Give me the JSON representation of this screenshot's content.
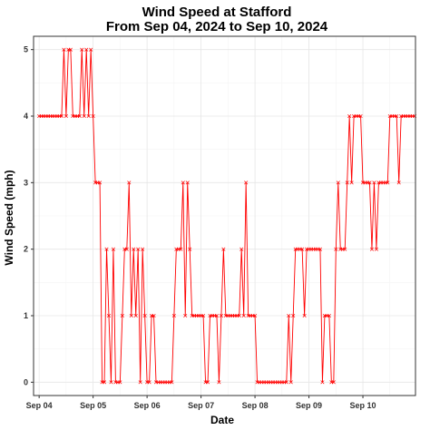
{
  "chart_data": {
    "type": "line",
    "title": "Wind Speed at Stafford",
    "subtitle": "From Sep 04, 2024 to Sep 10, 2024",
    "xlabel": "Date",
    "ylabel": "Wind Speed (mph)",
    "x_ticks": [
      "Sep 04",
      "Sep 05",
      "Sep 06",
      "Sep 07",
      "Sep 08",
      "Sep 09",
      "Sep 10"
    ],
    "xlim": [
      "2024-09-03T21:31",
      "2024-09-10T23:23"
    ],
    "ylim": [
      -0.2,
      5.2
    ],
    "y_ticks": [
      0,
      1,
      2,
      3,
      4,
      5
    ],
    "grid": true,
    "marker": "x",
    "line_color": "#ff0000",
    "series": [
      {
        "x": [
          "2024-09-04T00:00",
          "2024-09-04T01:00",
          "2024-09-04T02:00",
          "2024-09-04T03:00",
          "2024-09-04T04:00",
          "2024-09-04T05:00",
          "2024-09-04T06:00",
          "2024-09-04T07:00",
          "2024-09-04T08:00",
          "2024-09-04T09:00",
          "2024-09-04T10:00",
          "2024-09-04T11:00",
          "2024-09-04T12:00",
          "2024-09-04T13:00",
          "2024-09-04T14:00",
          "2024-09-04T15:00",
          "2024-09-04T16:00",
          "2024-09-04T17:00",
          "2024-09-04T18:00",
          "2024-09-04T19:00",
          "2024-09-04T20:00",
          "2024-09-04T21:00",
          "2024-09-04T22:00",
          "2024-09-04T23:00",
          "2024-09-05T00:00",
          "2024-09-05T01:00",
          "2024-09-05T02:00",
          "2024-09-05T03:00",
          "2024-09-05T04:00",
          "2024-09-05T05:00",
          "2024-09-05T06:00",
          "2024-09-05T07:00",
          "2024-09-05T08:00",
          "2024-09-05T09:00",
          "2024-09-05T10:00",
          "2024-09-05T11:00",
          "2024-09-05T12:00",
          "2024-09-05T13:00",
          "2024-09-05T14:00",
          "2024-09-05T15:00",
          "2024-09-05T16:00",
          "2024-09-05T17:00",
          "2024-09-05T18:00",
          "2024-09-05T19:00",
          "2024-09-05T20:00",
          "2024-09-05T21:00",
          "2024-09-05T22:00",
          "2024-09-05T23:00",
          "2024-09-06T00:00",
          "2024-09-06T01:00",
          "2024-09-06T02:00",
          "2024-09-06T03:00",
          "2024-09-06T04:00",
          "2024-09-06T05:00",
          "2024-09-06T06:00",
          "2024-09-06T07:00",
          "2024-09-06T08:00",
          "2024-09-06T09:00",
          "2024-09-06T10:00",
          "2024-09-06T11:00",
          "2024-09-06T12:00",
          "2024-09-06T13:00",
          "2024-09-06T14:00",
          "2024-09-06T15:00",
          "2024-09-06T16:00",
          "2024-09-06T17:00",
          "2024-09-06T18:00",
          "2024-09-06T19:00",
          "2024-09-06T20:00",
          "2024-09-06T21:00",
          "2024-09-06T22:00",
          "2024-09-06T23:00",
          "2024-09-07T00:00",
          "2024-09-07T01:00",
          "2024-09-07T02:00",
          "2024-09-07T03:00",
          "2024-09-07T04:00",
          "2024-09-07T05:00",
          "2024-09-07T06:00",
          "2024-09-07T07:00",
          "2024-09-07T08:00",
          "2024-09-07T09:00",
          "2024-09-07T10:00",
          "2024-09-07T11:00",
          "2024-09-07T12:00",
          "2024-09-07T13:00",
          "2024-09-07T14:00",
          "2024-09-07T15:00",
          "2024-09-07T16:00",
          "2024-09-07T17:00",
          "2024-09-07T18:00",
          "2024-09-07T19:00",
          "2024-09-07T20:00",
          "2024-09-07T21:00",
          "2024-09-07T22:00",
          "2024-09-07T23:00",
          "2024-09-08T00:00",
          "2024-09-08T01:00",
          "2024-09-08T02:00",
          "2024-09-08T03:00",
          "2024-09-08T04:00",
          "2024-09-08T05:00",
          "2024-09-08T06:00",
          "2024-09-08T07:00",
          "2024-09-08T08:00",
          "2024-09-08T09:00",
          "2024-09-08T10:00",
          "2024-09-08T11:00",
          "2024-09-08T12:00",
          "2024-09-08T13:00",
          "2024-09-08T14:00",
          "2024-09-08T15:00",
          "2024-09-08T16:00",
          "2024-09-08T17:00",
          "2024-09-08T18:00",
          "2024-09-08T19:00",
          "2024-09-08T20:00",
          "2024-09-08T21:00",
          "2024-09-08T22:00",
          "2024-09-08T23:00",
          "2024-09-09T00:00",
          "2024-09-09T01:00",
          "2024-09-09T02:00",
          "2024-09-09T03:00",
          "2024-09-09T04:00",
          "2024-09-09T05:00",
          "2024-09-09T06:00",
          "2024-09-09T07:00",
          "2024-09-09T08:00",
          "2024-09-09T09:00",
          "2024-09-09T10:00",
          "2024-09-09T11:00",
          "2024-09-09T12:00",
          "2024-09-09T13:00",
          "2024-09-09T14:00",
          "2024-09-09T15:00",
          "2024-09-09T16:00",
          "2024-09-09T17:00",
          "2024-09-09T18:00",
          "2024-09-09T19:00",
          "2024-09-09T20:00",
          "2024-09-09T21:00",
          "2024-09-09T22:00",
          "2024-09-09T23:00",
          "2024-09-10T00:00",
          "2024-09-10T01:00",
          "2024-09-10T02:00",
          "2024-09-10T03:00",
          "2024-09-10T04:00",
          "2024-09-10T05:00",
          "2024-09-10T06:00",
          "2024-09-10T07:00",
          "2024-09-10T08:00",
          "2024-09-10T09:00",
          "2024-09-10T10:00",
          "2024-09-10T11:00",
          "2024-09-10T12:00",
          "2024-09-10T13:00",
          "2024-09-10T14:00",
          "2024-09-10T15:00",
          "2024-09-10T16:00",
          "2024-09-10T17:00",
          "2024-09-10T18:00",
          "2024-09-10T19:00",
          "2024-09-10T20:00",
          "2024-09-10T21:00",
          "2024-09-10T22:00",
          "2024-09-10T23:00"
        ],
        "values": [
          4,
          4,
          4,
          4,
          4,
          4,
          4,
          4,
          4,
          4,
          4,
          5,
          4,
          5,
          5,
          4,
          4,
          4,
          4,
          5,
          4,
          5,
          4,
          5,
          4,
          3,
          3,
          3,
          0,
          0,
          2,
          1,
          0,
          2,
          0,
          0,
          0,
          1,
          2,
          2,
          3,
          1,
          2,
          1,
          2,
          0,
          2,
          1,
          0,
          0,
          1,
          1,
          0,
          0,
          0,
          0,
          0,
          0,
          0,
          0,
          1,
          2,
          2,
          2,
          3,
          1,
          3,
          2,
          1,
          1,
          1,
          1,
          1,
          1,
          0,
          0,
          1,
          1,
          1,
          1,
          0,
          1,
          2,
          1,
          1,
          1,
          1,
          1,
          1,
          1,
          2,
          1,
          3,
          1,
          1,
          1,
          1,
          0,
          0,
          0,
          0,
          0,
          0,
          0,
          0,
          0,
          0,
          0,
          0,
          0,
          0,
          1,
          0,
          1,
          2,
          2,
          2,
          2,
          1,
          2,
          2,
          2,
          2,
          2,
          2,
          2,
          0,
          1,
          1,
          1,
          0,
          0,
          2,
          3,
          2,
          2,
          2,
          3,
          4,
          3,
          4,
          4,
          4,
          4,
          3,
          3,
          3,
          3,
          2,
          3,
          2,
          3,
          3,
          3,
          3,
          3,
          4,
          4,
          4,
          4,
          3,
          4,
          4,
          4,
          4,
          4,
          4,
          4
        ]
      }
    ]
  }
}
